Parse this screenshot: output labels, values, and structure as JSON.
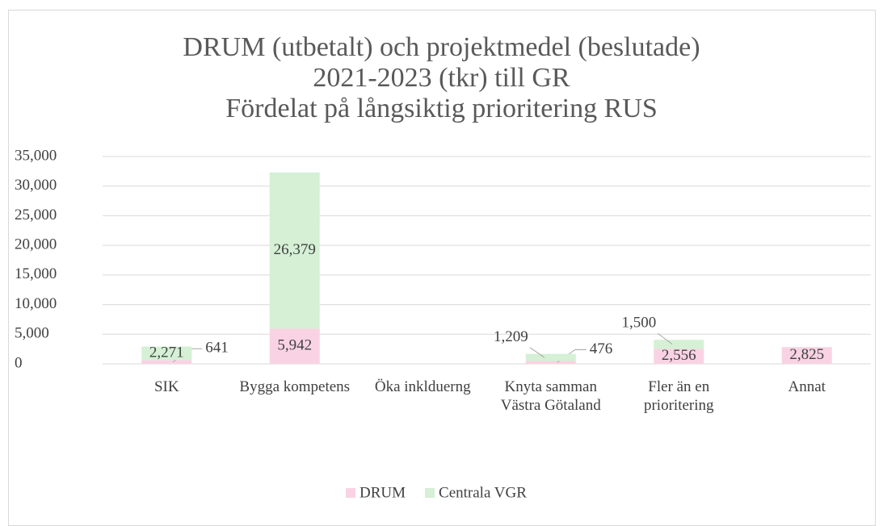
{
  "chart_data": {
    "type": "stacked_bar",
    "title": [
      "DRUM (utbetalt) och projektmedel (beslutade)",
      "2021-2023 (tkr) till GR",
      "Fördelat på långsiktig prioritering RUS"
    ],
    "categories": [
      "SIK",
      "Bygga kompetens",
      "Öka inklduerng",
      "Knyta samman Västra Götaland",
      "Fler än en prioritering",
      "Annat"
    ],
    "series": [
      {
        "name": "DRUM",
        "color": "#f9d3e3",
        "values": [
          641,
          5942,
          null,
          476,
          2556,
          2825
        ],
        "value_labels": [
          "641",
          "5,942",
          null,
          "476",
          "2,556",
          "2,825"
        ]
      },
      {
        "name": "Centrala VGR",
        "color": "#d5f0d5",
        "values": [
          2271,
          26379,
          null,
          1209,
          1500,
          null
        ],
        "value_labels": [
          "2,271",
          "26,379",
          null,
          "1,209",
          "1,500",
          null
        ]
      }
    ],
    "ylim": [
      0,
      35000
    ],
    "yticks": [
      {
        "value": 0,
        "label": "0"
      },
      {
        "value": 5000,
        "label": "5,000"
      },
      {
        "value": 10000,
        "label": "10,000"
      },
      {
        "value": 15000,
        "label": "15,000"
      },
      {
        "value": 20000,
        "label": "20,000"
      },
      {
        "value": 25000,
        "label": "25,000"
      },
      {
        "value": 30000,
        "label": "30,000"
      },
      {
        "value": 35000,
        "label": "35,000"
      }
    ],
    "grid": true,
    "legend": "bottom"
  }
}
